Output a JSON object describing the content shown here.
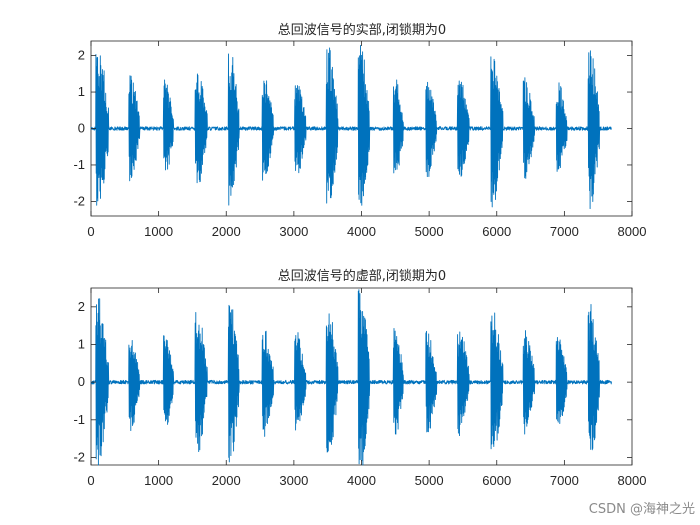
{
  "chart_data": [
    {
      "type": "line",
      "title": "总回波信号的实部,闭锁期为0",
      "xlim": [
        0,
        8000
      ],
      "ylim": [
        -2.4,
        2.4
      ],
      "x_ticks": [
        0,
        1000,
        2000,
        3000,
        4000,
        5000,
        6000,
        7000,
        8000
      ],
      "y_ticks": [
        -2,
        -1,
        0,
        1,
        2
      ],
      "grid": false,
      "series_color": "#0072bd",
      "signal": {
        "x_start": 1,
        "x_end": 7700,
        "noise_floor": 0.05,
        "bursts": [
          {
            "start": 70,
            "end": 260,
            "peak": 2.4
          },
          {
            "start": 560,
            "end": 720,
            "peak": 1.45
          },
          {
            "start": 1070,
            "end": 1220,
            "peak": 1.35
          },
          {
            "start": 1540,
            "end": 1720,
            "peak": 1.65
          },
          {
            "start": 2030,
            "end": 2190,
            "peak": 2.2
          },
          {
            "start": 2530,
            "end": 2700,
            "peak": 1.45
          },
          {
            "start": 3010,
            "end": 3180,
            "peak": 1.35
          },
          {
            "start": 3480,
            "end": 3650,
            "peak": 2.3
          },
          {
            "start": 3950,
            "end": 4120,
            "peak": 2.4
          },
          {
            "start": 4470,
            "end": 4620,
            "peak": 1.4
          },
          {
            "start": 4950,
            "end": 5110,
            "peak": 1.35
          },
          {
            "start": 5420,
            "end": 5590,
            "peak": 1.4
          },
          {
            "start": 5910,
            "end": 6090,
            "peak": 2.2
          },
          {
            "start": 6390,
            "end": 6560,
            "peak": 1.4
          },
          {
            "start": 6880,
            "end": 7040,
            "peak": 1.3
          },
          {
            "start": 7350,
            "end": 7520,
            "peak": 2.3
          }
        ]
      }
    },
    {
      "type": "line",
      "title": "总回波信号的虚部,闭锁期为0",
      "xlim": [
        0,
        8000
      ],
      "ylim": [
        -2.2,
        2.5
      ],
      "x_ticks": [
        0,
        1000,
        2000,
        3000,
        4000,
        5000,
        6000,
        7000,
        8000
      ],
      "y_ticks": [
        -2,
        -1,
        0,
        1,
        2
      ],
      "grid": false,
      "series_color": "#0072bd",
      "signal": {
        "x_start": 1,
        "x_end": 7700,
        "noise_floor": 0.05,
        "bursts": [
          {
            "start": 70,
            "end": 260,
            "peak": 2.35
          },
          {
            "start": 560,
            "end": 720,
            "peak": 1.4
          },
          {
            "start": 1070,
            "end": 1220,
            "peak": 1.35
          },
          {
            "start": 1540,
            "end": 1720,
            "peak": 1.95
          },
          {
            "start": 2030,
            "end": 2190,
            "peak": 2.2
          },
          {
            "start": 2530,
            "end": 2700,
            "peak": 1.45
          },
          {
            "start": 3010,
            "end": 3180,
            "peak": 1.35
          },
          {
            "start": 3480,
            "end": 3650,
            "peak": 2.05
          },
          {
            "start": 3950,
            "end": 4120,
            "peak": 2.5
          },
          {
            "start": 4470,
            "end": 4620,
            "peak": 1.5
          },
          {
            "start": 4950,
            "end": 5110,
            "peak": 1.4
          },
          {
            "start": 5420,
            "end": 5590,
            "peak": 1.45
          },
          {
            "start": 5910,
            "end": 6090,
            "peak": 2.0
          },
          {
            "start": 6390,
            "end": 6560,
            "peak": 1.45
          },
          {
            "start": 6880,
            "end": 7040,
            "peak": 1.3
          },
          {
            "start": 7350,
            "end": 7520,
            "peak": 2.1
          }
        ]
      }
    }
  ],
  "watermark": "CSDN @海神之光"
}
